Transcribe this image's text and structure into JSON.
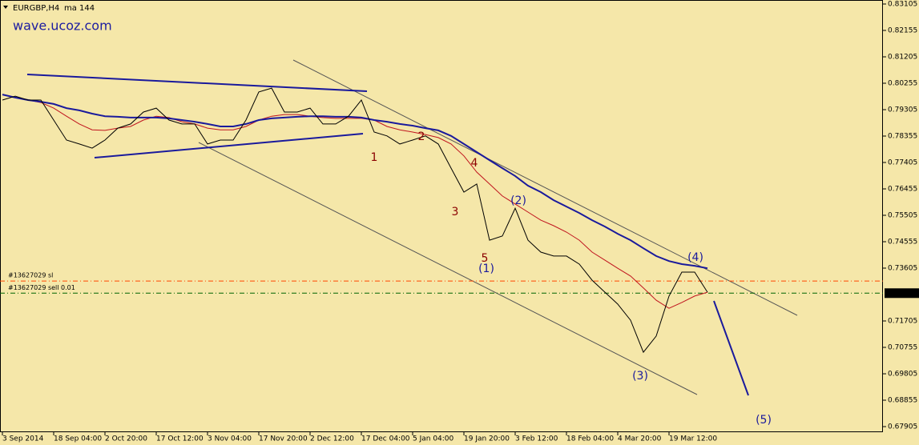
{
  "chart_data": {
    "type": "line",
    "title": "EURGBP,H4",
    "indicator": "ma 144",
    "watermark": "wave.ucoz.com",
    "xlim": [
      -0.1875,
      68.6875
    ],
    "xticks": [
      {
        "value": 0,
        "label": "3 Sep 2014"
      },
      {
        "value": 4,
        "label": "18 Sep 04:00"
      },
      {
        "value": 8,
        "label": "2 Oct 20:00"
      },
      {
        "value": 12,
        "label": "17 Oct 12:00"
      },
      {
        "value": 16,
        "label": "3 Nov 04:00"
      },
      {
        "value": 20,
        "label": "17 Nov 20:00"
      },
      {
        "value": 24,
        "label": "2 Dec 12:00"
      },
      {
        "value": 28,
        "label": "17 Dec 04:00"
      },
      {
        "value": 32,
        "label": "5 Jan 04:00"
      },
      {
        "value": 36,
        "label": "19 Jan 20:00"
      },
      {
        "value": 40,
        "label": "3 Feb 12:00"
      },
      {
        "value": 44,
        "label": "18 Feb 04:00"
      },
      {
        "value": 48,
        "label": "4 Mar 20:00"
      },
      {
        "value": 52,
        "label": "19 Mar 12:00"
      }
    ],
    "ylim": [
      0.67704,
      0.83249
    ],
    "yticks": [
      0.83105,
      0.82155,
      0.81205,
      0.80255,
      0.79305,
      0.78355,
      0.77405,
      0.76455,
      0.75505,
      0.74555,
      0.73605,
      0.71705,
      0.70755,
      0.69805,
      0.68855,
      0.67905
    ],
    "current_price": 0.72705,
    "grid": false,
    "series": [
      {
        "name": "EURGBP",
        "color": "#000000",
        "values": [
          0.7965,
          0.7979,
          0.7965,
          0.7965,
          0.7893,
          0.7821,
          0.7807,
          0.7792,
          0.7821,
          0.7864,
          0.7879,
          0.7922,
          0.7936,
          0.7893,
          0.7879,
          0.7879,
          0.7807,
          0.7821,
          0.7821,
          0.7893,
          0.7994,
          0.8008,
          0.7922,
          0.7922,
          0.7936,
          0.7879,
          0.7879,
          0.7907,
          0.7965,
          0.785,
          0.7836,
          0.7807,
          0.7821,
          0.7836,
          0.7807,
          0.772,
          0.7634,
          0.7663,
          0.7461,
          0.7476,
          0.7576,
          0.7461,
          0.7418,
          0.7404,
          0.7404,
          0.7375,
          0.7317,
          0.7274,
          0.7231,
          0.7173,
          0.7058,
          0.7116,
          0.726,
          0.7346,
          0.7346,
          0.7274
        ]
      },
      {
        "name": "ma 144",
        "color": "#1a1a9c",
        "values": [
          0.7985,
          0.7974,
          0.7965,
          0.7959,
          0.7951,
          0.7936,
          0.7928,
          0.7916,
          0.7907,
          0.7905,
          0.7902,
          0.7902,
          0.7902,
          0.7899,
          0.7893,
          0.7887,
          0.7879,
          0.787,
          0.787,
          0.7879,
          0.7893,
          0.7899,
          0.7902,
          0.7905,
          0.7907,
          0.7907,
          0.7905,
          0.7905,
          0.7902,
          0.7893,
          0.7887,
          0.7879,
          0.7873,
          0.7864,
          0.7856,
          0.7836,
          0.7807,
          0.7778,
          0.7749,
          0.772,
          0.7692,
          0.7657,
          0.7634,
          0.7605,
          0.7582,
          0.7559,
          0.7533,
          0.751,
          0.7484,
          0.7461,
          0.7432,
          0.7404,
          0.7386,
          0.7375,
          0.7369,
          0.736
        ]
      },
      {
        "name": "ma",
        "color": "#c0141e",
        "values": [
          0.7985,
          0.7974,
          0.7965,
          0.7956,
          0.7936,
          0.7907,
          0.7879,
          0.7858,
          0.7856,
          0.7864,
          0.787,
          0.7893,
          0.7907,
          0.7902,
          0.7887,
          0.7879,
          0.7864,
          0.7858,
          0.7858,
          0.787,
          0.7893,
          0.7907,
          0.7913,
          0.7913,
          0.7907,
          0.7902,
          0.7899,
          0.7899,
          0.7899,
          0.7893,
          0.787,
          0.7858,
          0.785,
          0.7841,
          0.783,
          0.7807,
          0.7764,
          0.7706,
          0.7663,
          0.762,
          0.7591,
          0.7562,
          0.7533,
          0.7513,
          0.749,
          0.7461,
          0.7418,
          0.7389,
          0.736,
          0.7332,
          0.7289,
          0.7245,
          0.7216,
          0.7237,
          0.726,
          0.7274
        ]
      }
    ],
    "orders": [
      {
        "label": "#13627029 sl",
        "price": 0.7314,
        "color": "#ff4500"
      },
      {
        "label": "#13627029 sell 0.01",
        "price": 0.72705,
        "color": "#006400"
      }
    ],
    "annotations": [
      {
        "text": "1",
        "color": "#8b0000"
      },
      {
        "text": "2",
        "color": "#8b0000"
      },
      {
        "text": "3",
        "color": "#8b0000"
      },
      {
        "text": "4",
        "color": "#8b0000"
      },
      {
        "text": "5",
        "color": "#8b0000"
      },
      {
        "text": "(1)",
        "color": "#1a1a9c"
      },
      {
        "text": "(2)",
        "color": "#1a1a9c"
      },
      {
        "text": "(3)",
        "color": "#1a1a9c"
      },
      {
        "text": "(4)",
        "color": "#1a1a9c"
      },
      {
        "text": "(5)",
        "color": "#1a1a9c"
      }
    ]
  }
}
